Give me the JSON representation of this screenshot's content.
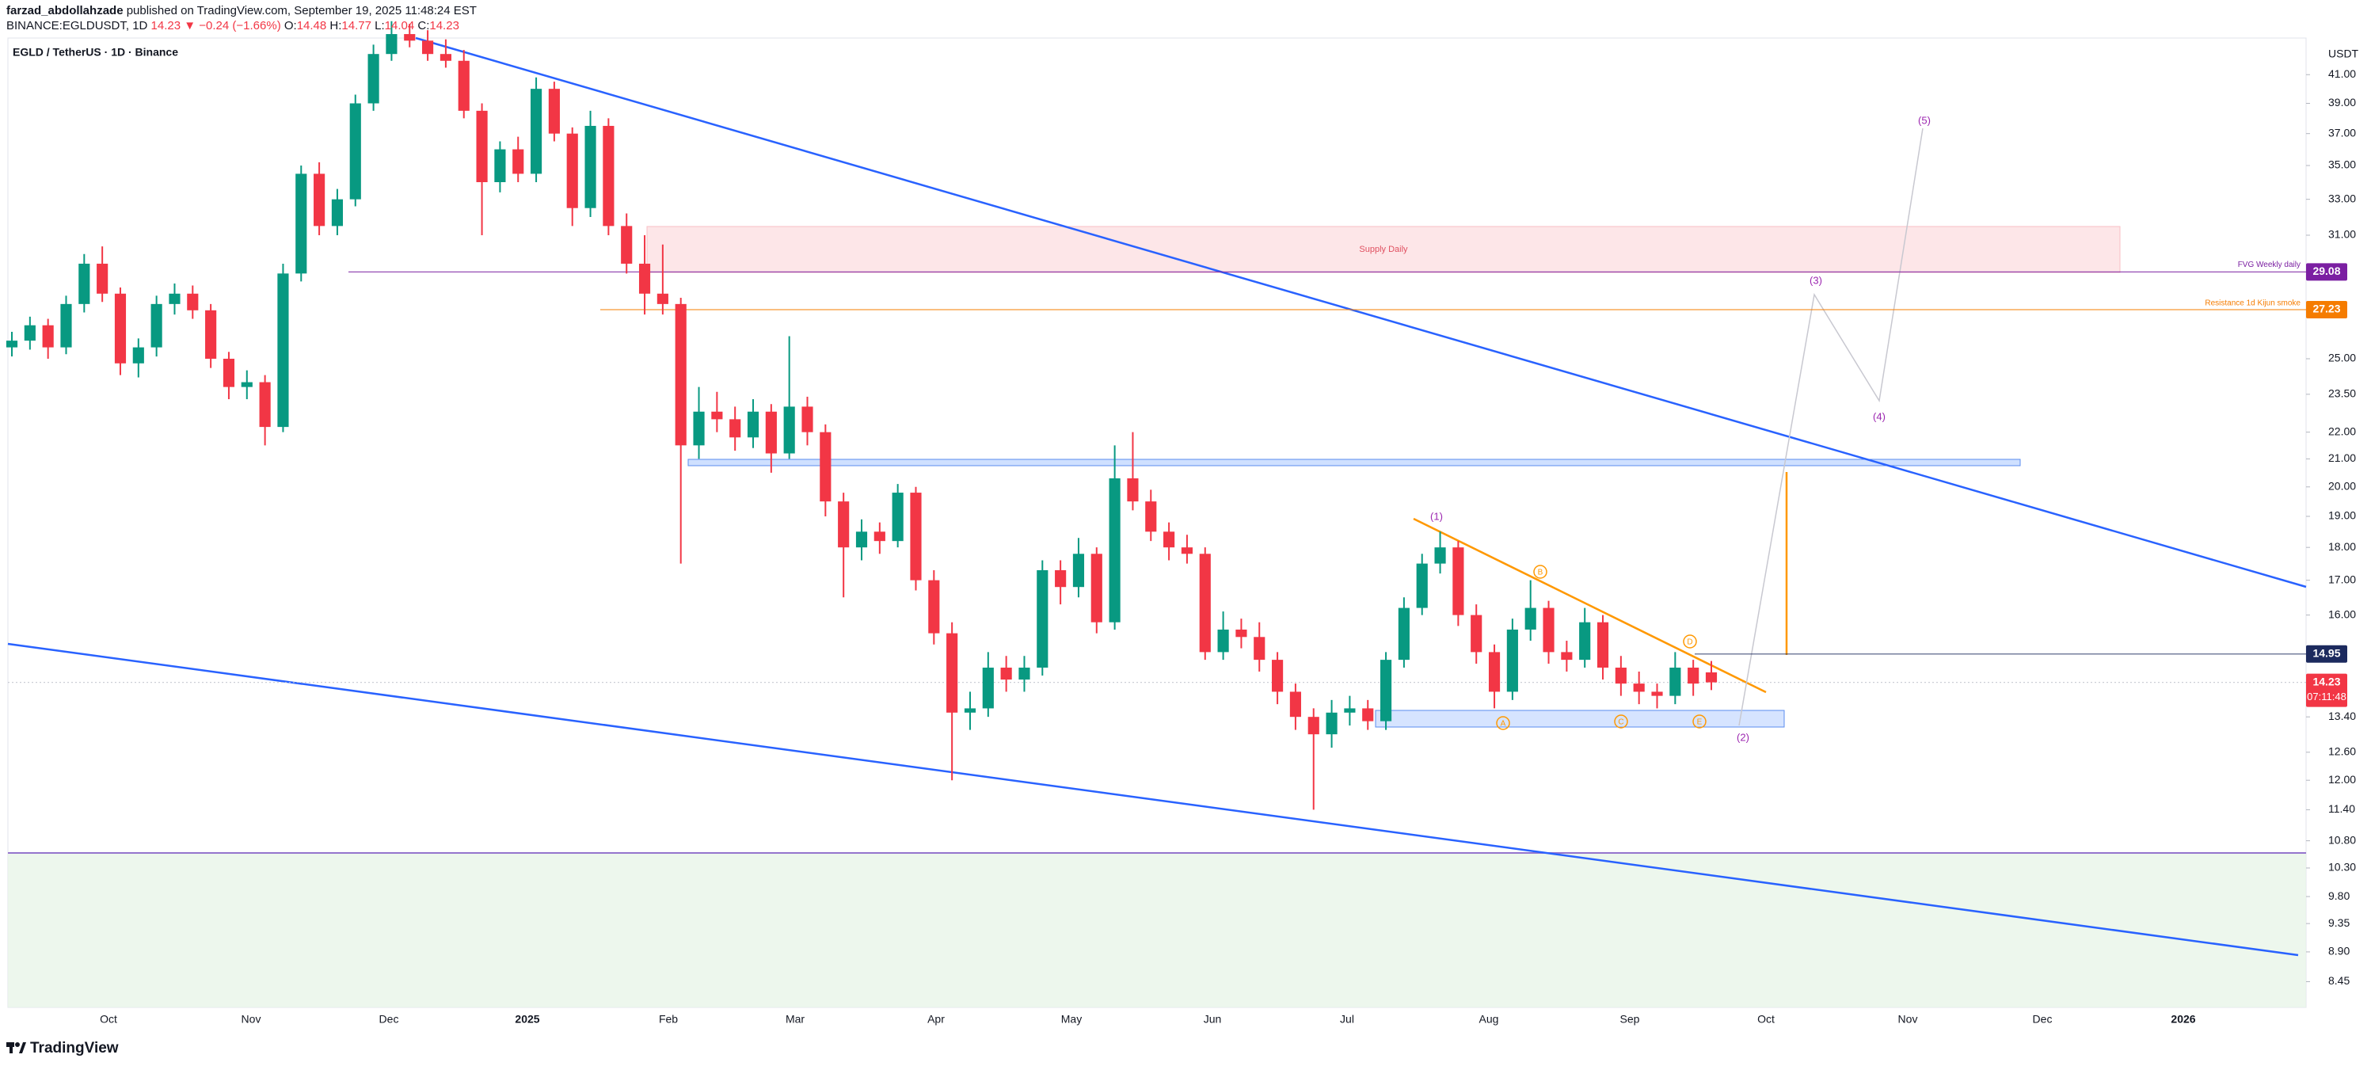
{
  "header": {
    "author": "farzad_abdollahzade",
    "published": "published on TradingView.com, September 19, 2025 11:48:24 EST",
    "symbol": "BINANCE:EGLDUSDT, 1D",
    "last": "14.23",
    "change": "▼ −0.24 (−1.66%)",
    "o_label": "O:",
    "o": "14.48",
    "h_label": "H:",
    "h": "14.77",
    "l_label": "L:",
    "l": "14.04",
    "c_label": "C:",
    "c": "14.23"
  },
  "chart_data": {
    "type": "candlestick",
    "title": "EGLD / TetherUS · 1D · Binance",
    "currency": "USDT",
    "log_scale": true,
    "up_color": "#089981",
    "down_color": "#f23645",
    "ylim": [
      8.08,
      43.7
    ],
    "yticks": [
      {
        "value": 41,
        "label": "41.00"
      },
      {
        "value": 39,
        "label": "39.00"
      },
      {
        "value": 37,
        "label": "37.00"
      },
      {
        "value": 35,
        "label": "35.00"
      },
      {
        "value": 33,
        "label": "33.00"
      },
      {
        "value": 31,
        "label": "31.00"
      },
      {
        "value": 25,
        "label": "25.00"
      },
      {
        "value": 23.5,
        "label": "23.50"
      },
      {
        "value": 22,
        "label": "22.00"
      },
      {
        "value": 21,
        "label": "21.00"
      },
      {
        "value": 20,
        "label": "20.00"
      },
      {
        "value": 19,
        "label": "19.00"
      },
      {
        "value": 18,
        "label": "18.00"
      },
      {
        "value": 17,
        "label": "17.00"
      },
      {
        "value": 16,
        "label": "16.00"
      },
      {
        "value": 13.4,
        "label": "13.40"
      },
      {
        "value": 12.6,
        "label": "12.60"
      },
      {
        "value": 12,
        "label": "12.00"
      },
      {
        "value": 11.4,
        "label": "11.40"
      },
      {
        "value": 10.8,
        "label": "10.80"
      },
      {
        "value": 10.3,
        "label": "10.30"
      },
      {
        "value": 9.8,
        "label": "9.80"
      },
      {
        "value": 9.35,
        "label": "9.35"
      },
      {
        "value": 8.9,
        "label": "8.90"
      },
      {
        "value": 8.45,
        "label": "8.45"
      }
    ],
    "x_labels": [
      "Oct",
      "Nov",
      "Dec",
      "2025",
      "Feb",
      "Mar",
      "Apr",
      "May",
      "Jun",
      "Jul",
      "Aug",
      "Sep",
      "Oct",
      "Nov",
      "Dec",
      "2026"
    ],
    "candles": [
      [
        25.5,
        26.2,
        25.1,
        25.8
      ],
      [
        25.8,
        26.9,
        25.4,
        26.5
      ],
      [
        26.5,
        26.8,
        25.0,
        25.5
      ],
      [
        25.5,
        27.9,
        25.2,
        27.5
      ],
      [
        27.5,
        30.0,
        27.1,
        29.5
      ],
      [
        29.5,
        30.4,
        27.6,
        28.0
      ],
      [
        28.0,
        28.3,
        24.3,
        24.8
      ],
      [
        24.8,
        25.9,
        24.2,
        25.5
      ],
      [
        25.5,
        27.9,
        25.1,
        27.5
      ],
      [
        27.5,
        28.5,
        27.0,
        28.0
      ],
      [
        28.0,
        28.4,
        26.8,
        27.2
      ],
      [
        27.2,
        27.5,
        24.6,
        25.0
      ],
      [
        25.0,
        25.3,
        23.3,
        23.8
      ],
      [
        23.8,
        24.5,
        23.3,
        24.0
      ],
      [
        24.0,
        24.3,
        21.5,
        22.2
      ],
      [
        22.2,
        29.5,
        22.0,
        29.0
      ],
      [
        29.0,
        35.0,
        28.6,
        34.5
      ],
      [
        34.5,
        35.2,
        31.0,
        31.5
      ],
      [
        31.5,
        33.6,
        31.0,
        33.0
      ],
      [
        33.0,
        39.6,
        32.6,
        39.0
      ],
      [
        39.0,
        43.2,
        38.5,
        42.5
      ],
      [
        42.5,
        45.0,
        42.0,
        44.0
      ],
      [
        44.0,
        44.8,
        43.0,
        43.5
      ],
      [
        43.5,
        44.3,
        42.0,
        42.5
      ],
      [
        42.5,
        43.6,
        41.5,
        42.0
      ],
      [
        42.0,
        42.8,
        38.0,
        38.5
      ],
      [
        38.5,
        39.0,
        31.0,
        34.0
      ],
      [
        34.0,
        36.5,
        33.4,
        36.0
      ],
      [
        36.0,
        36.8,
        34.0,
        34.5
      ],
      [
        34.5,
        40.8,
        34.0,
        40.0
      ],
      [
        40.0,
        40.5,
        36.5,
        37.0
      ],
      [
        37.0,
        37.4,
        31.5,
        32.5
      ],
      [
        32.5,
        38.5,
        32.0,
        37.5
      ],
      [
        37.5,
        38.0,
        31.0,
        31.5
      ],
      [
        31.5,
        32.2,
        29.0,
        29.5
      ],
      [
        29.5,
        31.0,
        27.0,
        28.0
      ],
      [
        28.0,
        30.5,
        27.0,
        27.5
      ],
      [
        27.5,
        27.8,
        17.5,
        21.5
      ],
      [
        21.5,
        23.8,
        21.0,
        22.8
      ],
      [
        22.8,
        23.6,
        22.0,
        22.5
      ],
      [
        22.5,
        23.0,
        21.3,
        21.8
      ],
      [
        21.8,
        23.3,
        21.4,
        22.8
      ],
      [
        22.8,
        23.1,
        20.5,
        21.2
      ],
      [
        21.2,
        26.0,
        21.0,
        23.0
      ],
      [
        23.0,
        23.4,
        21.5,
        22.0
      ],
      [
        22.0,
        22.3,
        19.0,
        19.5
      ],
      [
        19.5,
        19.8,
        16.5,
        18.0
      ],
      [
        18.0,
        18.9,
        17.6,
        18.5
      ],
      [
        18.5,
        18.8,
        17.8,
        18.2
      ],
      [
        18.2,
        20.1,
        18.0,
        19.8
      ],
      [
        19.8,
        20.0,
        16.7,
        17.0
      ],
      [
        17.0,
        17.3,
        15.2,
        15.5
      ],
      [
        15.5,
        15.8,
        12.0,
        13.5
      ],
      [
        13.5,
        14.0,
        13.1,
        13.6
      ],
      [
        13.6,
        15.0,
        13.4,
        14.6
      ],
      [
        14.6,
        14.9,
        14.0,
        14.3
      ],
      [
        14.3,
        14.9,
        14.0,
        14.6
      ],
      [
        14.6,
        17.6,
        14.4,
        17.3
      ],
      [
        17.3,
        17.6,
        16.3,
        16.8
      ],
      [
        16.8,
        18.3,
        16.5,
        17.8
      ],
      [
        17.8,
        18.0,
        15.5,
        15.8
      ],
      [
        15.8,
        21.5,
        15.6,
        20.3
      ],
      [
        20.3,
        22.0,
        19.2,
        19.5
      ],
      [
        19.5,
        19.9,
        18.2,
        18.5
      ],
      [
        18.5,
        18.8,
        17.6,
        18.0
      ],
      [
        18.0,
        18.4,
        17.5,
        17.8
      ],
      [
        17.8,
        18.0,
        14.8,
        15.0
      ],
      [
        15.0,
        16.1,
        14.8,
        15.6
      ],
      [
        15.6,
        15.9,
        15.1,
        15.4
      ],
      [
        15.4,
        15.8,
        14.5,
        14.8
      ],
      [
        14.8,
        15.0,
        13.7,
        14.0
      ],
      [
        14.0,
        14.2,
        13.1,
        13.4
      ],
      [
        13.4,
        13.6,
        11.4,
        13.0
      ],
      [
        13.0,
        13.8,
        12.7,
        13.5
      ],
      [
        13.5,
        13.9,
        13.2,
        13.6
      ],
      [
        13.6,
        13.8,
        13.1,
        13.3
      ],
      [
        13.3,
        15.0,
        13.1,
        14.8
      ],
      [
        14.8,
        16.5,
        14.6,
        16.2
      ],
      [
        16.2,
        17.8,
        16.0,
        17.5
      ],
      [
        17.5,
        18.5,
        17.2,
        18.0
      ],
      [
        18.0,
        18.2,
        15.7,
        16.0
      ],
      [
        16.0,
        16.3,
        14.7,
        15.0
      ],
      [
        15.0,
        15.2,
        13.6,
        14.0
      ],
      [
        14.0,
        15.9,
        13.8,
        15.6
      ],
      [
        15.6,
        17.0,
        15.3,
        16.2
      ],
      [
        16.2,
        16.4,
        14.7,
        15.0
      ],
      [
        15.0,
        15.3,
        14.5,
        14.8
      ],
      [
        14.8,
        16.2,
        14.6,
        15.8
      ],
      [
        15.8,
        16.0,
        14.3,
        14.6
      ],
      [
        14.6,
        14.9,
        13.9,
        14.2
      ],
      [
        14.2,
        14.5,
        13.7,
        14.0
      ],
      [
        14.0,
        14.2,
        13.6,
        13.9
      ],
      [
        13.9,
        15.0,
        13.7,
        14.6
      ],
      [
        14.6,
        14.8,
        13.9,
        14.2
      ],
      [
        14.48,
        14.77,
        14.04,
        14.23
      ]
    ],
    "price_tags": [
      {
        "value": 29.08,
        "color": "#7b1fa2"
      },
      {
        "value": 27.23,
        "color": "#f57c00"
      },
      {
        "value": 14.95,
        "color": "#1c2a5e"
      },
      {
        "value": 14.23,
        "color": "#f23645",
        "countdown": "07:11:48"
      }
    ],
    "annotations": {
      "supply": "Supply Daily",
      "fvg": "FVG Weekly daily",
      "resistance": "Resistance 1d Kijun smoke",
      "waves": [
        "(1)",
        "(2)",
        "(3)",
        "(4)",
        "(5)"
      ],
      "abcde": [
        "A",
        "B",
        "C",
        "D",
        "E"
      ]
    }
  },
  "footer": "TradingView"
}
